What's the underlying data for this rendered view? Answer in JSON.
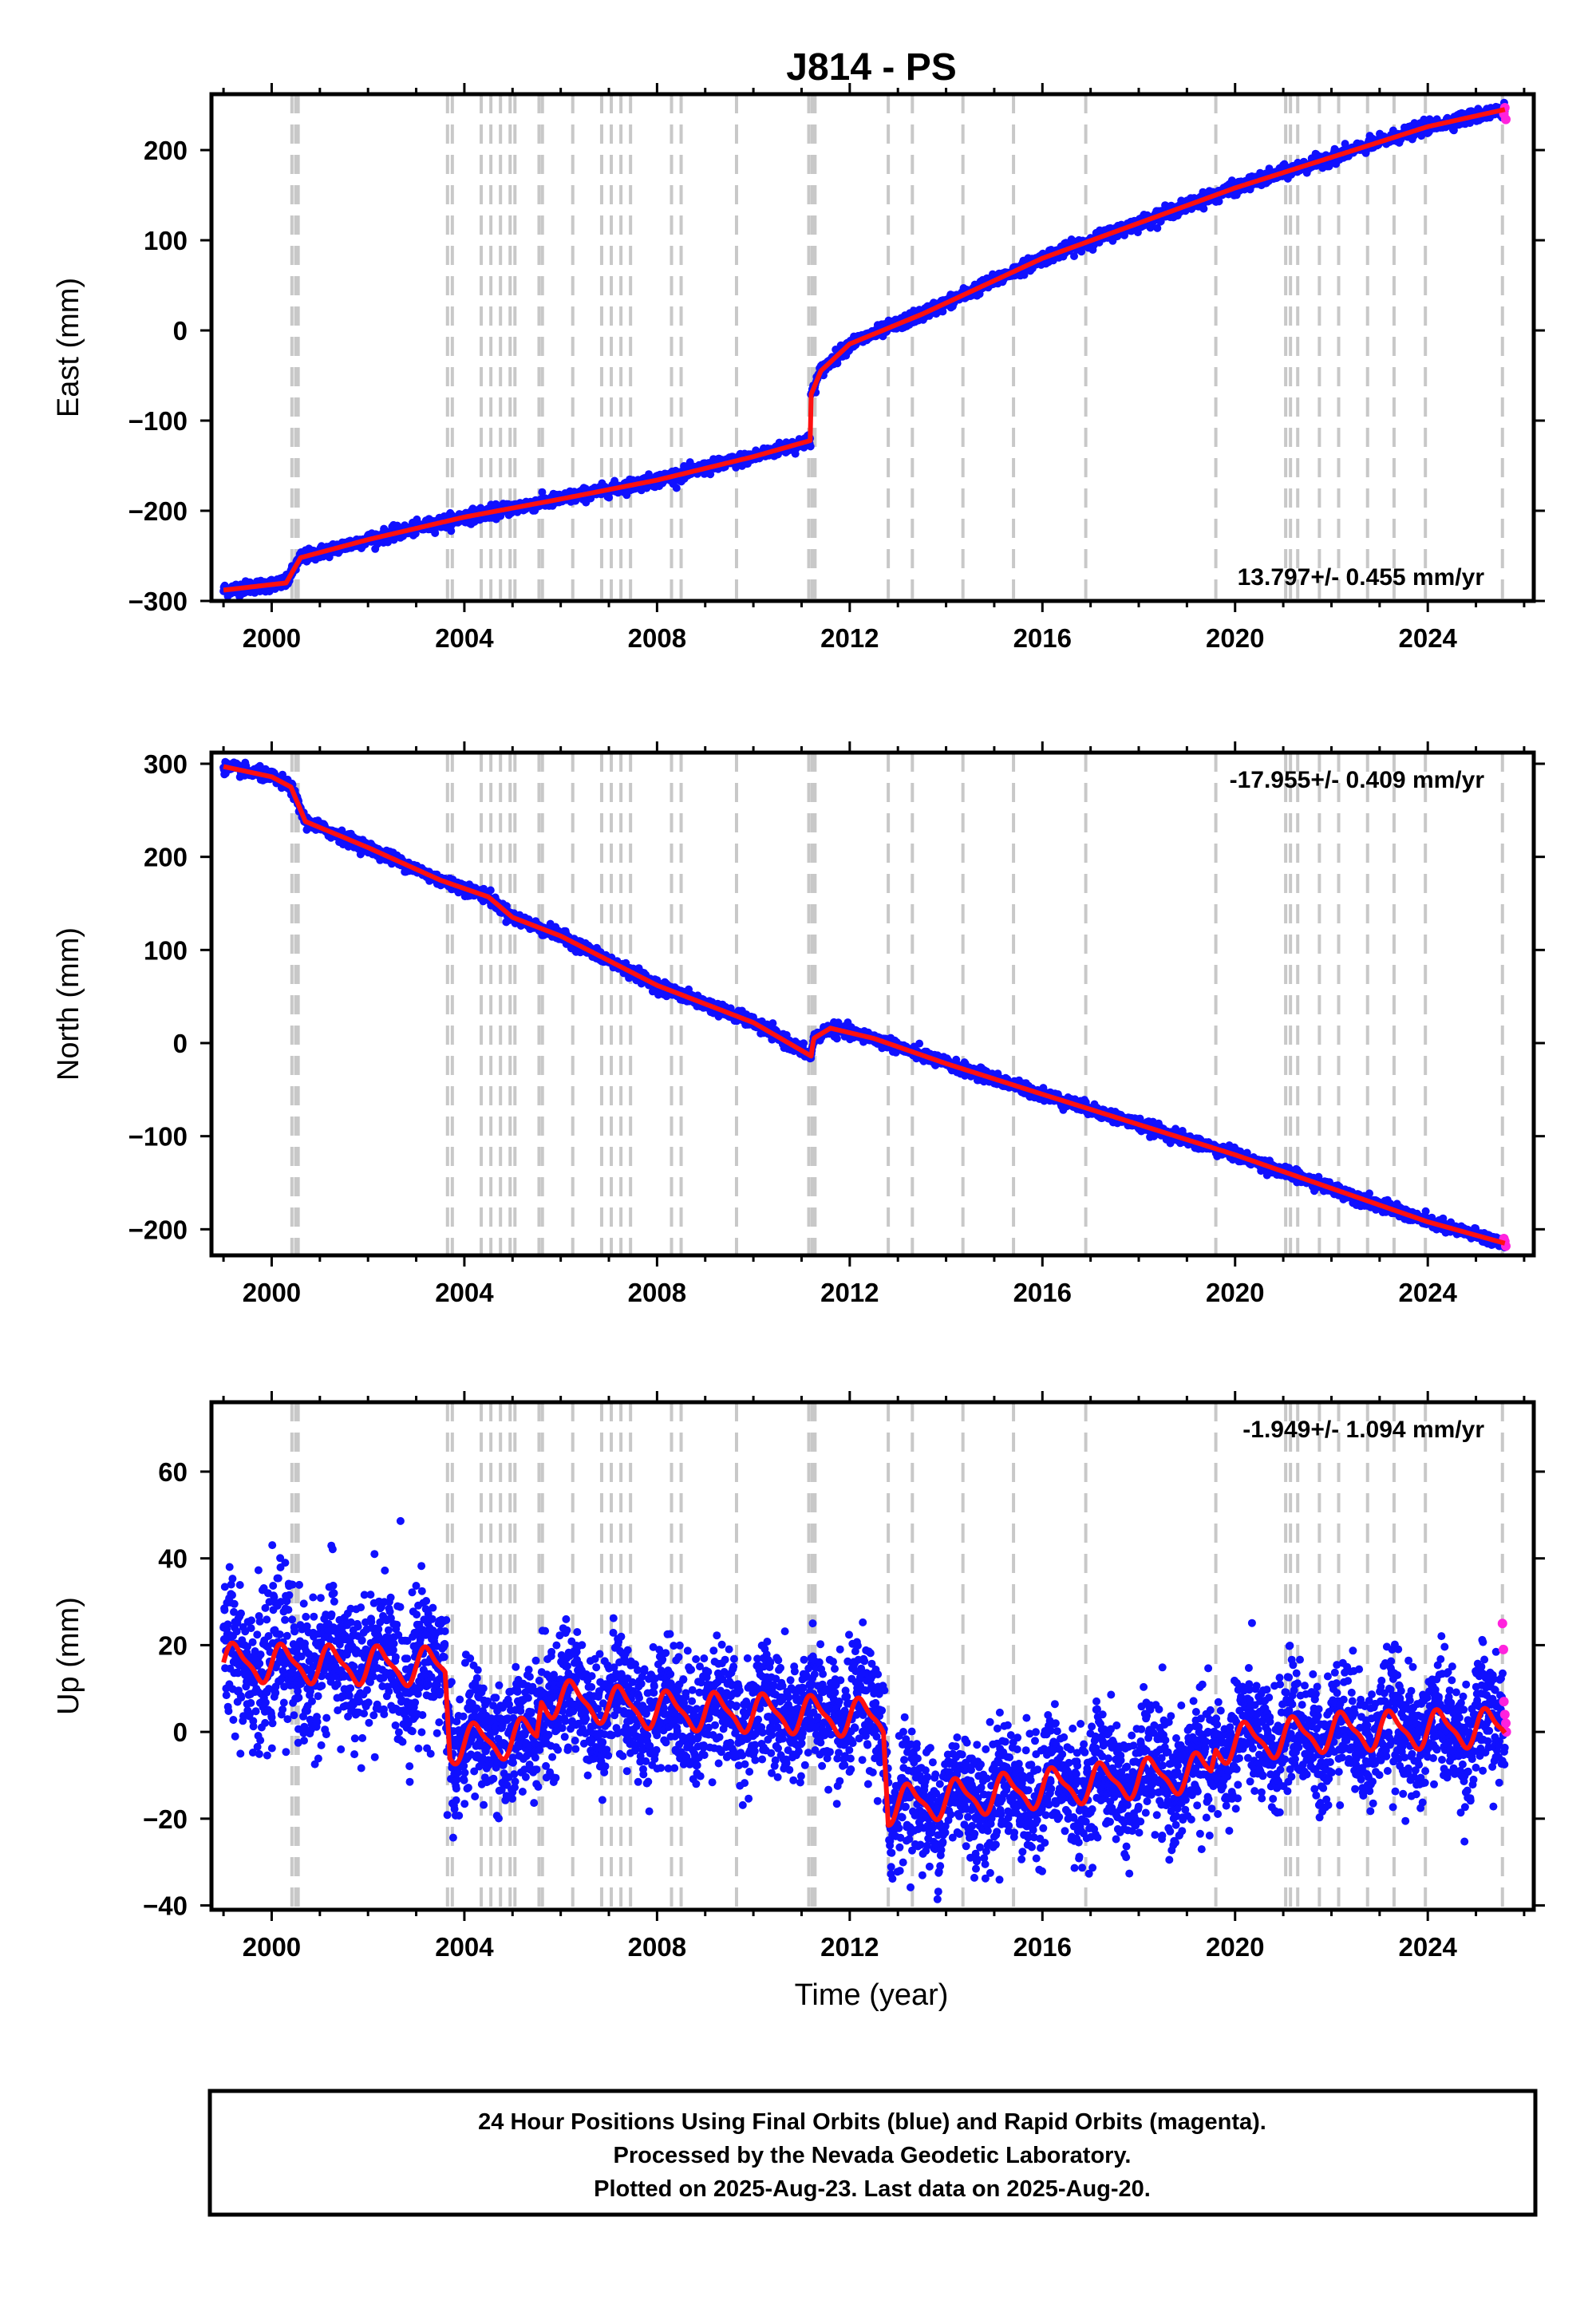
{
  "title": "J814 - PS",
  "x_axis_label": "Time (year)",
  "colors": {
    "final_orbits": "#1010ff",
    "rapid_orbits": "#ff22dd",
    "model": "#ff1010",
    "offsets": "#c8c8c8"
  },
  "footer": {
    "line1": "24 Hour Positions Using Final Orbits (blue) and Rapid Orbits (magenta).",
    "line2": "Processed by the Nevada Geodetic Laboratory.",
    "line3": "Plotted on 2025-Aug-23. Last data on 2025-Aug-20."
  },
  "chart_data": [
    {
      "type": "scatter",
      "ylabel": "East (mm)",
      "rate_text": "13.797+/- 0.455 mm/yr",
      "rate_position": "bottom-right",
      "xlim": [
        1998.75,
        2026.2
      ],
      "ylim": [
        -300,
        262
      ],
      "xticks": [
        2000,
        2004,
        2008,
        2012,
        2016,
        2020,
        2024
      ],
      "yticks": [
        -300,
        -200,
        -100,
        0,
        100,
        200
      ],
      "trend_anchors": [
        [
          1999.0,
          -288
        ],
        [
          2000.3,
          -280
        ],
        [
          2000.6,
          -252
        ],
        [
          2002.0,
          -232
        ],
        [
          2004.0,
          -207
        ],
        [
          2006.0,
          -187
        ],
        [
          2008.0,
          -166
        ],
        [
          2010.0,
          -140
        ],
        [
          2011.19,
          -122
        ],
        [
          2011.19,
          -72
        ],
        [
          2011.4,
          -45
        ],
        [
          2012.0,
          -15
        ],
        [
          2013.5,
          18
        ],
        [
          2016.0,
          80
        ],
        [
          2020.0,
          158
        ],
        [
          2024.0,
          226
        ],
        [
          2025.6,
          245
        ]
      ],
      "noise_mm": 3.5,
      "rapid_points": [
        [
          2025.58,
          240
        ],
        [
          2025.6,
          247
        ],
        [
          2025.62,
          234
        ]
      ]
    },
    {
      "type": "scatter",
      "ylabel": "North (mm)",
      "rate_text": "-17.955+/- 0.409 mm/yr",
      "rate_position": "top-right",
      "xlim": [
        1998.75,
        2026.2
      ],
      "ylim": [
        -228,
        312
      ],
      "xticks": [
        2000,
        2004,
        2008,
        2012,
        2016,
        2020,
        2024
      ],
      "yticks": [
        -200,
        -100,
        0,
        100,
        200,
        300
      ],
      "trend_anchors": [
        [
          1999.0,
          297
        ],
        [
          2000.0,
          286
        ],
        [
          2000.4,
          275
        ],
        [
          2000.7,
          238
        ],
        [
          2002.0,
          210
        ],
        [
          2003.5,
          175
        ],
        [
          2004.5,
          157
        ],
        [
          2005.0,
          135
        ],
        [
          2006.0,
          115
        ],
        [
          2008.0,
          62
        ],
        [
          2010.0,
          22
        ],
        [
          2011.2,
          -14
        ],
        [
          2011.25,
          5
        ],
        [
          2011.6,
          16
        ],
        [
          2012.5,
          5
        ],
        [
          2014.0,
          -22
        ],
        [
          2016.0,
          -55
        ],
        [
          2020.0,
          -120
        ],
        [
          2024.0,
          -192
        ],
        [
          2025.6,
          -215
        ]
      ],
      "noise_mm": 3.2,
      "rapid_points": [
        [
          2025.58,
          -210
        ],
        [
          2025.6,
          -213
        ],
        [
          2025.62,
          -218
        ]
      ]
    },
    {
      "type": "scatter",
      "ylabel": "Up (mm)",
      "rate_text": "-1.949+/- 1.094 mm/yr",
      "rate_position": "top-right",
      "xlim": [
        1998.75,
        2026.2
      ],
      "ylim": [
        -41,
        76
      ],
      "xticks": [
        2000,
        2004,
        2008,
        2012,
        2016,
        2020,
        2024
      ],
      "yticks": [
        -40,
        -20,
        0,
        20,
        40,
        60
      ],
      "trend_anchors": [
        [
          1999.0,
          16
        ],
        [
          2003.6,
          15
        ],
        [
          2003.7,
          -3
        ],
        [
          2005.5,
          -1
        ],
        [
          2005.6,
          8
        ],
        [
          2008.0,
          5
        ],
        [
          2011.0,
          4
        ],
        [
          2012.7,
          3
        ],
        [
          2012.8,
          -17
        ],
        [
          2016.0,
          -13
        ],
        [
          2019.5,
          -9
        ],
        [
          2019.6,
          -3
        ],
        [
          2022.0,
          0
        ],
        [
          2025.6,
          1
        ]
      ],
      "seasonal_amp_mm": 4,
      "noise_mm": 7,
      "rapid_points": [
        [
          2025.55,
          25
        ],
        [
          2025.57,
          19
        ],
        [
          2025.58,
          7
        ],
        [
          2025.6,
          4
        ],
        [
          2025.62,
          2
        ],
        [
          2025.63,
          0
        ]
      ]
    }
  ],
  "offset_epochs": [
    2000.42,
    2000.5,
    2000.55,
    2003.65,
    2003.75,
    2004.35,
    2004.55,
    2004.75,
    2004.95,
    2005.05,
    2005.55,
    2005.62,
    2006.25,
    2006.85,
    2007.05,
    2007.25,
    2007.45,
    2008.3,
    2008.5,
    2009.65,
    2011.15,
    2011.22,
    2011.28,
    2012.8,
    2013.3,
    2014.35,
    2015.4,
    2016.9,
    2019.6,
    2021.05,
    2021.15,
    2021.3,
    2021.75,
    2022.15,
    2022.75,
    2023.3,
    2023.95,
    2025.55
  ]
}
